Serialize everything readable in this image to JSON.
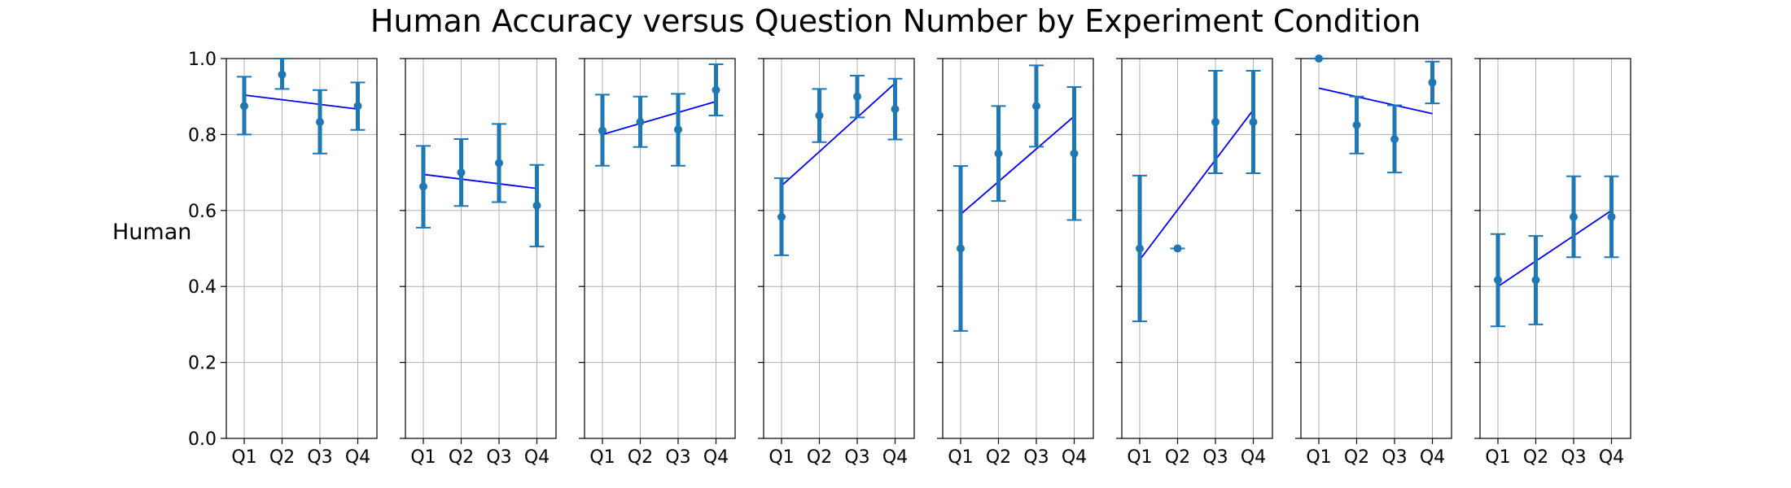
{
  "chart_data": {
    "type": "scatter",
    "title": "Human Accuracy versus Question Number by Experiment Condition",
    "ylabel": "Human",
    "xlabel": "",
    "categories": [
      "Q1",
      "Q2",
      "Q3",
      "Q4"
    ],
    "ylim": [
      0.0,
      1.0
    ],
    "yticks": [
      "0.0",
      "0.2",
      "0.4",
      "0.6",
      "0.8",
      "1.0"
    ],
    "grid": true,
    "colors": {
      "marker": "#1f77b4",
      "errorbar": "#1f77b4",
      "trendline": "#0000ff"
    },
    "panels": [
      {
        "values": [
          0.875,
          0.958,
          0.833,
          0.875
        ],
        "err_low": [
          0.8,
          0.92,
          0.75,
          0.812
        ],
        "err_high": [
          0.952,
          1.0,
          0.917,
          0.937
        ],
        "trend": [
          0.904,
          0.867
        ]
      },
      {
        "values": [
          0.663,
          0.7,
          0.725,
          0.613
        ],
        "err_low": [
          0.555,
          0.612,
          0.622,
          0.505
        ],
        "err_high": [
          0.77,
          0.788,
          0.828,
          0.72
        ],
        "trend": [
          0.695,
          0.658
        ]
      },
      {
        "values": [
          0.81,
          0.833,
          0.813,
          0.917
        ],
        "err_low": [
          0.718,
          0.767,
          0.718,
          0.85
        ],
        "err_high": [
          0.905,
          0.9,
          0.907,
          0.985
        ],
        "trend": [
          0.8,
          0.887
        ]
      },
      {
        "values": [
          0.583,
          0.85,
          0.9,
          0.867
        ],
        "err_low": [
          0.482,
          0.78,
          0.845,
          0.787
        ],
        "err_high": [
          0.685,
          0.92,
          0.955,
          0.947
        ],
        "trend": [
          0.665,
          0.935
        ]
      },
      {
        "values": [
          0.5,
          0.75,
          0.875,
          0.75
        ],
        "err_low": [
          0.283,
          0.625,
          0.768,
          0.575
        ],
        "err_high": [
          0.717,
          0.875,
          0.982,
          0.925
        ],
        "trend": [
          0.59,
          0.848
        ]
      },
      {
        "values": [
          0.5,
          0.5,
          0.833,
          0.833
        ],
        "err_low": [
          0.308,
          0.5,
          0.698,
          0.698
        ],
        "err_high": [
          0.692,
          0.5,
          0.968,
          0.968
        ],
        "trend": [
          0.47,
          0.865
        ]
      },
      {
        "values": [
          1.0,
          0.825,
          0.788,
          0.937
        ],
        "err_low": [
          1.0,
          0.75,
          0.7,
          0.882
        ],
        "err_high": [
          1.0,
          0.9,
          0.877,
          0.992
        ],
        "trend": [
          0.922,
          0.855
        ]
      },
      {
        "values": [
          0.417,
          0.417,
          0.583,
          0.583
        ],
        "err_low": [
          0.295,
          0.3,
          0.477,
          0.477
        ],
        "err_high": [
          0.538,
          0.533,
          0.69,
          0.69
        ],
        "trend": [
          0.4,
          0.6
        ]
      }
    ]
  }
}
